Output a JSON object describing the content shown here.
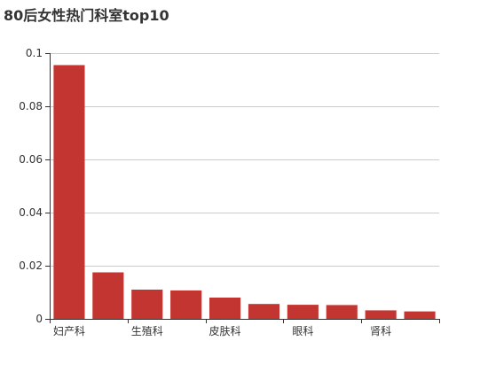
{
  "chart_data": {
    "type": "bar",
    "title": "80后女性热门科室top10",
    "xlabel": "",
    "ylabel": "",
    "categories": [
      "妇产科",
      "",
      "生殖科",
      "",
      "皮肤科",
      "",
      "眼科",
      "",
      "肾科",
      ""
    ],
    "values": [
      0.0955,
      0.0175,
      0.011,
      0.0107,
      0.008,
      0.0056,
      0.0053,
      0.0052,
      0.0032,
      0.0028
    ],
    "ylim": [
      0,
      0.1
    ],
    "yticks": [
      0,
      0.02,
      0.04,
      0.06,
      0.08,
      0.1
    ],
    "ytick_labels": [
      "0",
      "0.02",
      "0.04",
      "0.06",
      "0.08",
      "0.1"
    ],
    "grid": true,
    "bar_color": "#c23531",
    "axis_color": "#333333",
    "grid_color": "#cccccc"
  }
}
